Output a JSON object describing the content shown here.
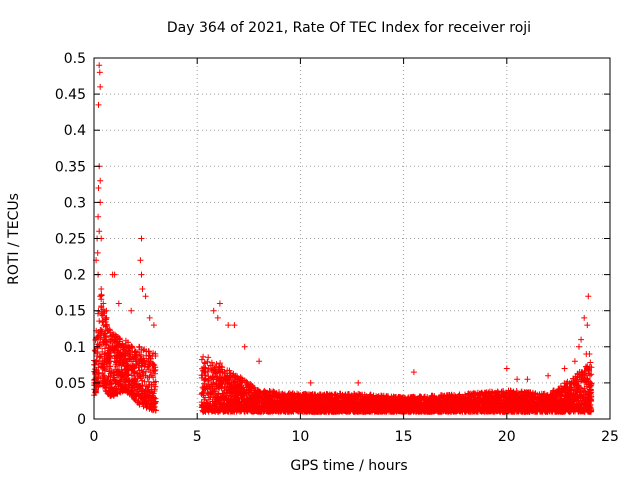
{
  "chart_data": {
    "type": "scatter",
    "title": "Day 364 of 2021, Rate Of TEC Index for receiver roji",
    "xlabel": "GPS time / hours",
    "ylabel": "ROTI / TECUs",
    "xlim": [
      0,
      25
    ],
    "ylim": [
      0,
      0.5
    ],
    "x_ticks": [
      "0",
      "5",
      "10",
      "15",
      "20",
      "25"
    ],
    "y_ticks": [
      "0",
      "0.05",
      "0.1",
      "0.15",
      "0.2",
      "0.25",
      "0.3",
      "0.35",
      "0.4",
      "0.45",
      "0.5"
    ],
    "grid": true,
    "marker": "+",
    "series_color": "#ff0000",
    "series": [
      {
        "name": "ROTI",
        "segments": [
          {
            "x_start": 0.0,
            "x_end": 3.0,
            "profile": [
              [
                0.0,
                0.03,
                0.09
              ],
              [
                0.3,
                0.05,
                0.18
              ],
              [
                0.8,
                0.03,
                0.12
              ],
              [
                1.5,
                0.04,
                0.11
              ],
              [
                2.2,
                0.02,
                0.1
              ],
              [
                3.0,
                0.01,
                0.09
              ]
            ]
          },
          {
            "x_start": 5.2,
            "x_end": 24.1,
            "profile": [
              [
                5.2,
                0.01,
                0.09
              ],
              [
                6.0,
                0.01,
                0.08
              ],
              [
                7.0,
                0.01,
                0.06
              ],
              [
                8.0,
                0.01,
                0.04
              ],
              [
                10.0,
                0.01,
                0.035
              ],
              [
                13.0,
                0.01,
                0.035
              ],
              [
                15.0,
                0.01,
                0.03
              ],
              [
                18.0,
                0.01,
                0.035
              ],
              [
                20.0,
                0.01,
                0.04
              ],
              [
                22.0,
                0.01,
                0.035
              ],
              [
                23.3,
                0.01,
                0.06
              ],
              [
                24.1,
                0.01,
                0.08
              ]
            ]
          }
        ],
        "peaks": [
          [
            0.25,
            0.49
          ],
          [
            0.28,
            0.48
          ],
          [
            0.3,
            0.46
          ],
          [
            0.22,
            0.435
          ],
          [
            0.25,
            0.35
          ],
          [
            0.3,
            0.33
          ],
          [
            0.22,
            0.32
          ],
          [
            0.3,
            0.3
          ],
          [
            0.2,
            0.28
          ],
          [
            0.25,
            0.26
          ],
          [
            0.15,
            0.25
          ],
          [
            0.35,
            0.25
          ],
          [
            0.18,
            0.23
          ],
          [
            0.1,
            0.22
          ],
          [
            0.2,
            0.2
          ],
          [
            0.35,
            0.18
          ],
          [
            0.3,
            0.17
          ],
          [
            0.45,
            0.16
          ],
          [
            0.9,
            0.2
          ],
          [
            1.0,
            0.2
          ],
          [
            0.6,
            0.15
          ],
          [
            1.2,
            0.16
          ],
          [
            1.8,
            0.15
          ],
          [
            2.3,
            0.25
          ],
          [
            2.25,
            0.22
          ],
          [
            2.3,
            0.2
          ],
          [
            2.35,
            0.18
          ],
          [
            2.5,
            0.17
          ],
          [
            2.7,
            0.14
          ],
          [
            2.9,
            0.13
          ],
          [
            5.8,
            0.15
          ],
          [
            6.1,
            0.16
          ],
          [
            6.0,
            0.14
          ],
          [
            6.5,
            0.13
          ],
          [
            6.8,
            0.13
          ],
          [
            7.3,
            0.1
          ],
          [
            8.0,
            0.08
          ],
          [
            10.5,
            0.05
          ],
          [
            12.8,
            0.05
          ],
          [
            15.5,
            0.065
          ],
          [
            20.0,
            0.07
          ],
          [
            20.5,
            0.055
          ],
          [
            21.0,
            0.055
          ],
          [
            22.0,
            0.06
          ],
          [
            22.8,
            0.07
          ],
          [
            23.3,
            0.08
          ],
          [
            23.5,
            0.1
          ],
          [
            23.6,
            0.11
          ],
          [
            23.75,
            0.14
          ],
          [
            23.9,
            0.13
          ],
          [
            23.95,
            0.17
          ],
          [
            23.85,
            0.09
          ],
          [
            24.0,
            0.09
          ]
        ]
      }
    ]
  }
}
